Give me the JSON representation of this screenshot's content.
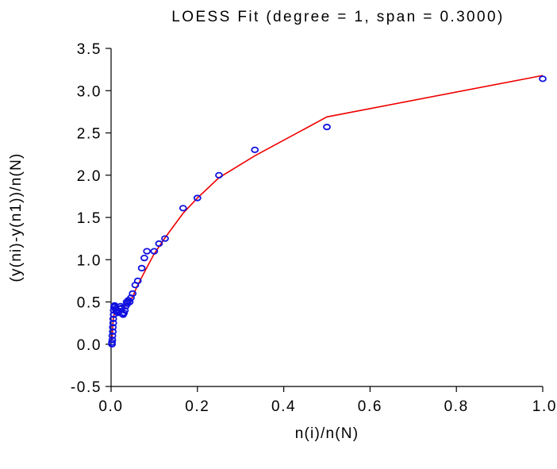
{
  "chart_data": {
    "type": "scatter",
    "title": "LOESS Fit (degree = 1, span = 0.3000)",
    "xlabel": "n(i)/n(N)",
    "ylabel": "(y(ni)-y(n1))/n(N)",
    "xlim": [
      0.0,
      1.0
    ],
    "ylim": [
      -0.5,
      3.5
    ],
    "xticks": [
      "0.0",
      "0.2",
      "0.4",
      "0.6",
      "0.8",
      "1.0"
    ],
    "yticks": [
      "-0.5",
      "0.0",
      "0.5",
      "1.0",
      "1.5",
      "2.0",
      "2.5",
      "3.0",
      "3.5"
    ],
    "grid": false,
    "legend": "none",
    "colors": {
      "points": "#1010e0",
      "fit": "#ee0000",
      "axes": "#000000"
    },
    "series": [
      {
        "kind": "points",
        "x": [
          0.002,
          0.002,
          0.003,
          0.003,
          0.004,
          0.004,
          0.005,
          0.005,
          0.006,
          0.006,
          0.007,
          0.008,
          0.009,
          0.01,
          0.012,
          0.014,
          0.016,
          0.018,
          0.02,
          0.022,
          0.024,
          0.026,
          0.028,
          0.03,
          0.032,
          0.034,
          0.036,
          0.038,
          0.04,
          0.043,
          0.046,
          0.05,
          0.056,
          0.062,
          0.071,
          0.077,
          0.083,
          0.1,
          0.111,
          0.125,
          0.167,
          0.2,
          0.25,
          0.333,
          0.5,
          1.0
        ],
        "y": [
          0.0,
          0.02,
          0.05,
          0.1,
          0.15,
          0.2,
          0.25,
          0.3,
          0.35,
          0.4,
          0.44,
          0.46,
          0.45,
          0.42,
          0.4,
          0.38,
          0.37,
          0.39,
          0.42,
          0.45,
          0.43,
          0.36,
          0.35,
          0.37,
          0.4,
          0.45,
          0.5,
          0.48,
          0.52,
          0.5,
          0.55,
          0.6,
          0.7,
          0.75,
          0.9,
          1.02,
          1.1,
          1.1,
          1.19,
          1.25,
          1.61,
          1.73,
          2.0,
          2.3,
          2.57,
          3.14
        ]
      },
      {
        "kind": "line",
        "x": [
          0.002,
          0.005,
          0.008,
          0.012,
          0.02,
          0.03,
          0.04,
          0.05,
          0.06,
          0.08,
          0.1,
          0.125,
          0.167,
          0.2,
          0.25,
          0.333,
          0.5,
          1.0
        ],
        "y": [
          0.05,
          0.3,
          0.38,
          0.39,
          0.41,
          0.44,
          0.48,
          0.56,
          0.68,
          0.88,
          1.07,
          1.26,
          1.55,
          1.73,
          1.97,
          2.23,
          2.69,
          3.18
        ]
      }
    ]
  }
}
